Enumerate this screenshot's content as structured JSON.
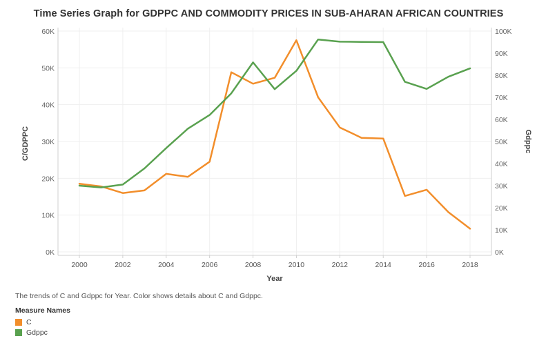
{
  "chart_data": {
    "type": "line",
    "title": "Time Series Graph for GDPPC AND COMMODITY PRICES  IN SUB-AHARAN AFRICAN COUNTRIES",
    "xlabel": "Year",
    "ylabel_left": "C/GDPPC",
    "ylabel_right": "Gdppc",
    "x": [
      2000,
      2001,
      2002,
      2003,
      2004,
      2005,
      2006,
      2007,
      2008,
      2009,
      2010,
      2011,
      2012,
      2013,
      2014,
      2015,
      2016,
      2017,
      2018
    ],
    "x_ticks": [
      "2000",
      "2002",
      "2004",
      "2006",
      "2008",
      "2010",
      "2012",
      "2014",
      "2016",
      "2018"
    ],
    "y_left_ticks": [
      "0K",
      "10K",
      "20K",
      "30K",
      "40K",
      "50K",
      "60K"
    ],
    "y_right_ticks": [
      "0K",
      "10K",
      "20K",
      "30K",
      "40K",
      "50K",
      "60K",
      "70K",
      "80K",
      "90K",
      "100K"
    ],
    "ylim_left": [
      0,
      60000
    ],
    "ylim_right": [
      0,
      100000
    ],
    "grid": true,
    "series": [
      {
        "name": "C",
        "axis": "left",
        "color": "#f28e2b",
        "values": [
          18500,
          17800,
          16000,
          16700,
          21200,
          20400,
          24500,
          48800,
          45700,
          47300,
          57500,
          42000,
          33800,
          31000,
          30800,
          15200,
          16900,
          10800,
          6300
        ]
      },
      {
        "name": "Gdppc",
        "axis": "right",
        "color": "#59a14f",
        "values": [
          30000,
          29200,
          30500,
          37800,
          47000,
          55800,
          62000,
          71800,
          85800,
          73700,
          82000,
          96200,
          95200,
          95100,
          95000,
          77000,
          73800,
          79300,
          83100
        ]
      }
    ]
  },
  "caption": "The trends of C and Gdppc for Year.  Color shows details about C and Gdppc.",
  "legend": {
    "title": "Measure Names",
    "items": [
      {
        "label": "C",
        "color": "#f28e2b"
      },
      {
        "label": "Gdppc",
        "color": "#59a14f"
      }
    ]
  }
}
